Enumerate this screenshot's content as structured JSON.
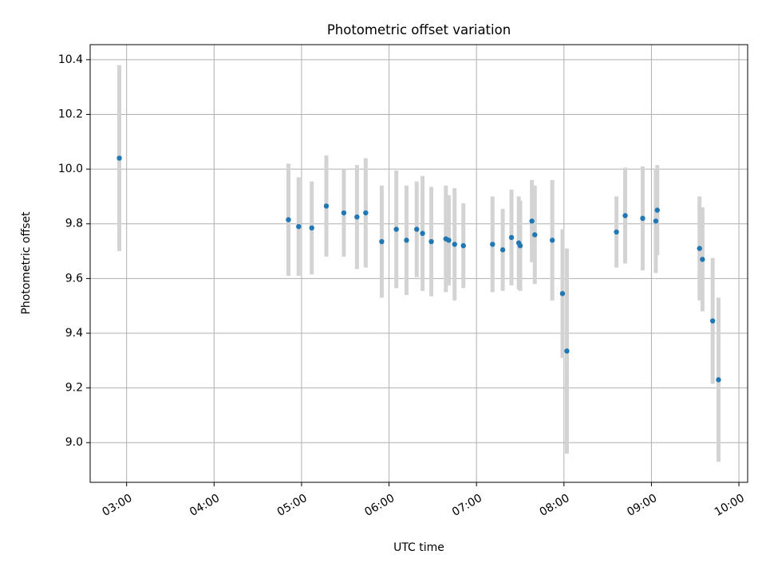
{
  "chart_data": {
    "type": "scatter",
    "title": "Photometric offset variation",
    "xlabel": "UTC time",
    "ylabel": "Photometric offset",
    "x_is_time": true,
    "xlim": [
      "02:35",
      "10:06"
    ],
    "ylim": [
      8.855,
      10.455
    ],
    "xticks": [
      "03:00",
      "04:00",
      "05:00",
      "06:00",
      "07:00",
      "08:00",
      "09:00",
      "10:00"
    ],
    "yticks": [
      9.0,
      9.2,
      9.4,
      9.6,
      9.8,
      10.0,
      10.2,
      10.4
    ],
    "ytick_labels": [
      "9.0",
      "9.2",
      "9.4",
      "9.6",
      "9.8",
      "10.0",
      "10.2",
      "10.4"
    ],
    "grid": true,
    "colors": {
      "point": "#1f77b4",
      "errorbar": "#d3d3d3",
      "grid": "#b0b0b0"
    },
    "points": [
      {
        "t": "02:55",
        "y": 10.04,
        "err": 0.34
      },
      {
        "t": "04:51",
        "y": 9.815,
        "err": 0.205
      },
      {
        "t": "04:58",
        "y": 9.79,
        "err": 0.18
      },
      {
        "t": "05:07",
        "y": 9.785,
        "err": 0.17
      },
      {
        "t": "05:17",
        "y": 9.865,
        "err": 0.185
      },
      {
        "t": "05:29",
        "y": 9.84,
        "err": 0.16
      },
      {
        "t": "05:38",
        "y": 9.825,
        "err": 0.19
      },
      {
        "t": "05:44",
        "y": 9.84,
        "err": 0.2
      },
      {
        "t": "05:55",
        "y": 9.735,
        "err": 0.205
      },
      {
        "t": "06:05",
        "y": 9.78,
        "err": 0.215
      },
      {
        "t": "06:12",
        "y": 9.74,
        "err": 0.2
      },
      {
        "t": "06:19",
        "y": 9.78,
        "err": 0.175
      },
      {
        "t": "06:23",
        "y": 9.765,
        "err": 0.21
      },
      {
        "t": "06:29",
        "y": 9.735,
        "err": 0.2
      },
      {
        "t": "06:39",
        "y": 9.745,
        "err": 0.195
      },
      {
        "t": "06:41",
        "y": 9.74,
        "err": 0.165
      },
      {
        "t": "06:45",
        "y": 9.725,
        "err": 0.205
      },
      {
        "t": "06:51",
        "y": 9.72,
        "err": 0.155
      },
      {
        "t": "07:11",
        "y": 9.725,
        "err": 0.175
      },
      {
        "t": "07:18",
        "y": 9.705,
        "err": 0.15
      },
      {
        "t": "07:24",
        "y": 9.75,
        "err": 0.175
      },
      {
        "t": "07:29",
        "y": 9.73,
        "err": 0.17
      },
      {
        "t": "07:30",
        "y": 9.72,
        "err": 0.165
      },
      {
        "t": "07:38",
        "y": 9.81,
        "err": 0.15
      },
      {
        "t": "07:40",
        "y": 9.76,
        "err": 0.18
      },
      {
        "t": "07:52",
        "y": 9.74,
        "err": 0.22
      },
      {
        "t": "07:59",
        "y": 9.545,
        "err": 0.235
      },
      {
        "t": "08:02",
        "y": 9.335,
        "err": 0.375
      },
      {
        "t": "08:36",
        "y": 9.77,
        "err": 0.13
      },
      {
        "t": "08:42",
        "y": 9.83,
        "err": 0.175
      },
      {
        "t": "08:54",
        "y": 9.82,
        "err": 0.19
      },
      {
        "t": "09:03",
        "y": 9.81,
        "err": 0.19
      },
      {
        "t": "09:04",
        "y": 9.85,
        "err": 0.165
      },
      {
        "t": "09:33",
        "y": 9.71,
        "err": 0.19
      },
      {
        "t": "09:35",
        "y": 9.67,
        "err": 0.19
      },
      {
        "t": "09:42",
        "y": 9.445,
        "err": 0.23
      },
      {
        "t": "09:46",
        "y": 9.23,
        "err": 0.3
      }
    ]
  }
}
